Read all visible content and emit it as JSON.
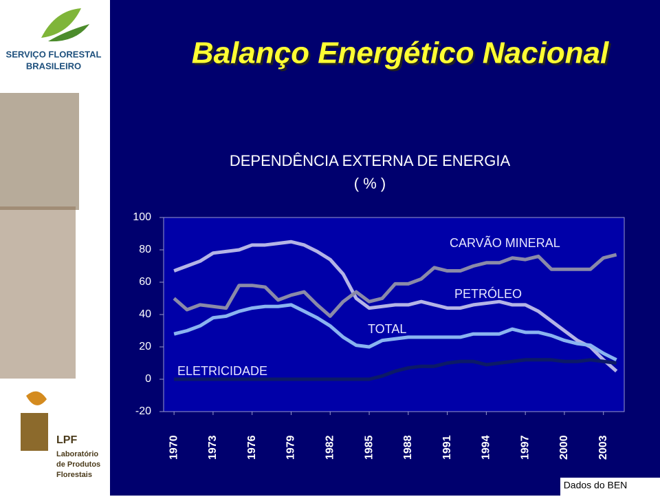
{
  "header": {
    "title": "Balanço Energético Nacional",
    "logo_top": [
      "SERVIÇO FLORESTAL",
      "BRASILEIRO"
    ],
    "logo_bottom": [
      "LPF",
      "Laboratório",
      "de Produtos",
      "Florestais"
    ]
  },
  "source": "Dados do BEN",
  "chart_data": {
    "type": "line",
    "title": "DEPENDÊNCIA EXTERNA DE ENERGIA",
    "subtitle": "( % )",
    "x": [
      1970,
      1971,
      1972,
      1973,
      1974,
      1975,
      1976,
      1977,
      1978,
      1979,
      1980,
      1981,
      1982,
      1983,
      1984,
      1985,
      1986,
      1987,
      1988,
      1989,
      1990,
      1991,
      1992,
      1993,
      1994,
      1995,
      1996,
      1997,
      1998,
      1999,
      2000,
      2001,
      2002,
      2003,
      2004
    ],
    "xlim": [
      1969.2,
      2004.6
    ],
    "xticks": [
      1970,
      1973,
      1976,
      1979,
      1982,
      1985,
      1988,
      1991,
      1994,
      1997,
      2000,
      2003
    ],
    "ylim": [
      -20,
      100
    ],
    "yticks": [
      -20,
      0,
      20,
      40,
      60,
      80,
      100
    ],
    "series": [
      {
        "color": "#b4b4e6",
        "values": [
          67,
          70,
          73,
          78,
          79,
          80,
          83,
          83,
          84,
          85,
          83,
          79,
          74,
          65,
          50,
          44,
          45,
          46,
          46,
          48,
          46,
          44,
          44,
          46,
          47,
          48,
          46,
          46,
          42,
          36,
          30,
          24,
          20,
          12,
          5
        ]
      },
      {
        "color": "#8a8aa8",
        "values": [
          50,
          43,
          46,
          45,
          44,
          58,
          58,
          57,
          49,
          52,
          54,
          46,
          39,
          48,
          54,
          48,
          50,
          59,
          59,
          62,
          69,
          67,
          67,
          70,
          72,
          72,
          75,
          74,
          76,
          68,
          68,
          68,
          68,
          75,
          77
        ]
      },
      {
        "color": "#8ab4f0",
        "values": [
          28,
          30,
          33,
          38,
          39,
          42,
          44,
          45,
          45,
          46,
          42,
          38,
          33,
          26,
          21,
          20,
          24,
          25,
          26,
          26,
          26,
          26,
          26,
          28,
          28,
          28,
          31,
          29,
          29,
          27,
          24,
          22,
          21,
          16,
          12
        ]
      },
      {
        "color": "#0c1a66",
        "values": [
          0,
          0,
          0,
          0,
          0,
          0,
          0,
          0,
          0,
          0,
          0,
          0,
          0,
          0,
          0,
          0,
          2,
          5,
          7,
          8,
          8,
          10,
          11,
          11,
          9,
          10,
          11,
          12,
          12,
          12,
          11,
          11,
          12,
          11,
          10
        ]
      }
    ],
    "annotations": [
      "ELETRICIDADE",
      "TOTAL",
      "PETRÓLEO",
      "CARVÃO MINERAL"
    ]
  }
}
